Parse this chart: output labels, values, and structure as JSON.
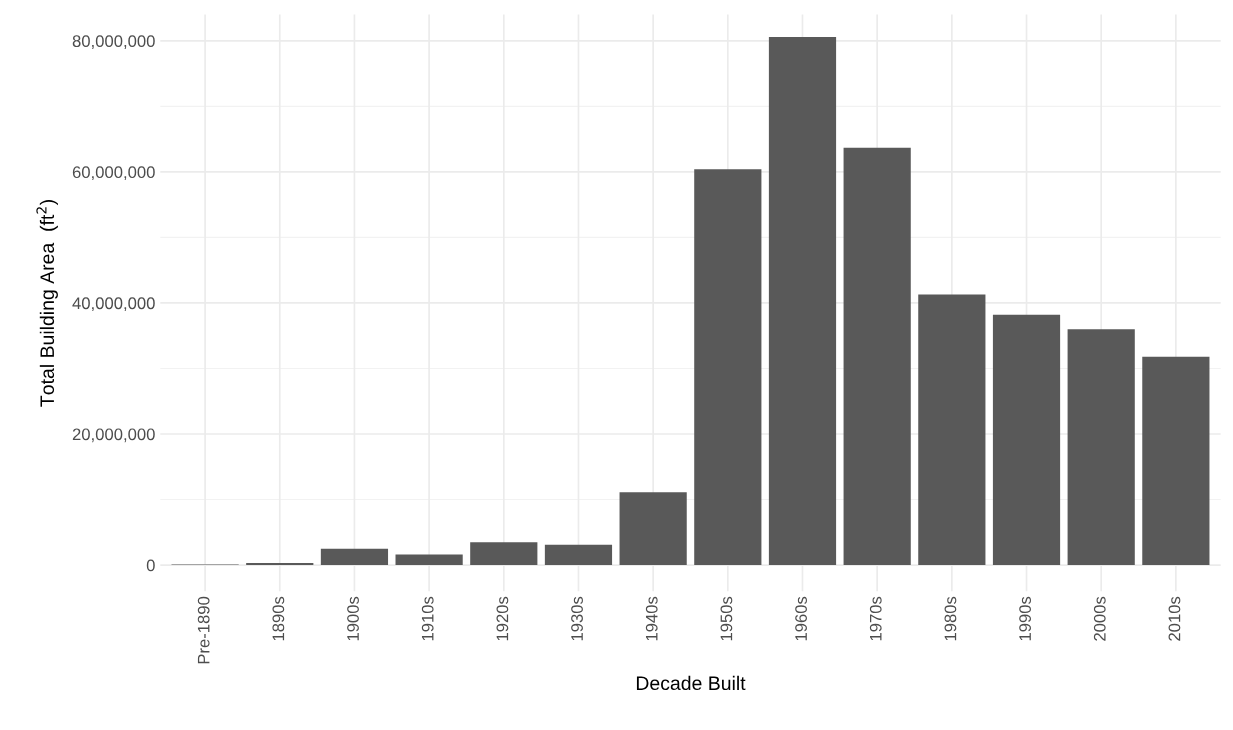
{
  "chart_data": {
    "type": "bar",
    "xlabel": "Decade Built",
    "ylabel": "Total Building Area  (ft$^{2}$)",
    "categories": [
      "Pre-1890",
      "1890s",
      "1900s",
      "1910s",
      "1920s",
      "1930s",
      "1940s",
      "1950s",
      "1960s",
      "1970s",
      "1980s",
      "1990s",
      "2000s",
      "2010s"
    ],
    "values": [
      100000,
      300000,
      2500000,
      1600000,
      3500000,
      3100000,
      11100000,
      60400000,
      80600000,
      63700000,
      41300000,
      38200000,
      36000000,
      31800000
    ],
    "color": "#595959",
    "ylim": [
      -4000000,
      84000000
    ],
    "yticks": [
      {
        "value": 0,
        "label": "0"
      },
      {
        "value": 20000000,
        "label": "20,000,000"
      },
      {
        "value": 40000000,
        "label": "40,000,000"
      },
      {
        "value": 60000000,
        "label": "60,000,000"
      },
      {
        "value": 80000000,
        "label": "80,000,000"
      }
    ],
    "grid": true
  }
}
